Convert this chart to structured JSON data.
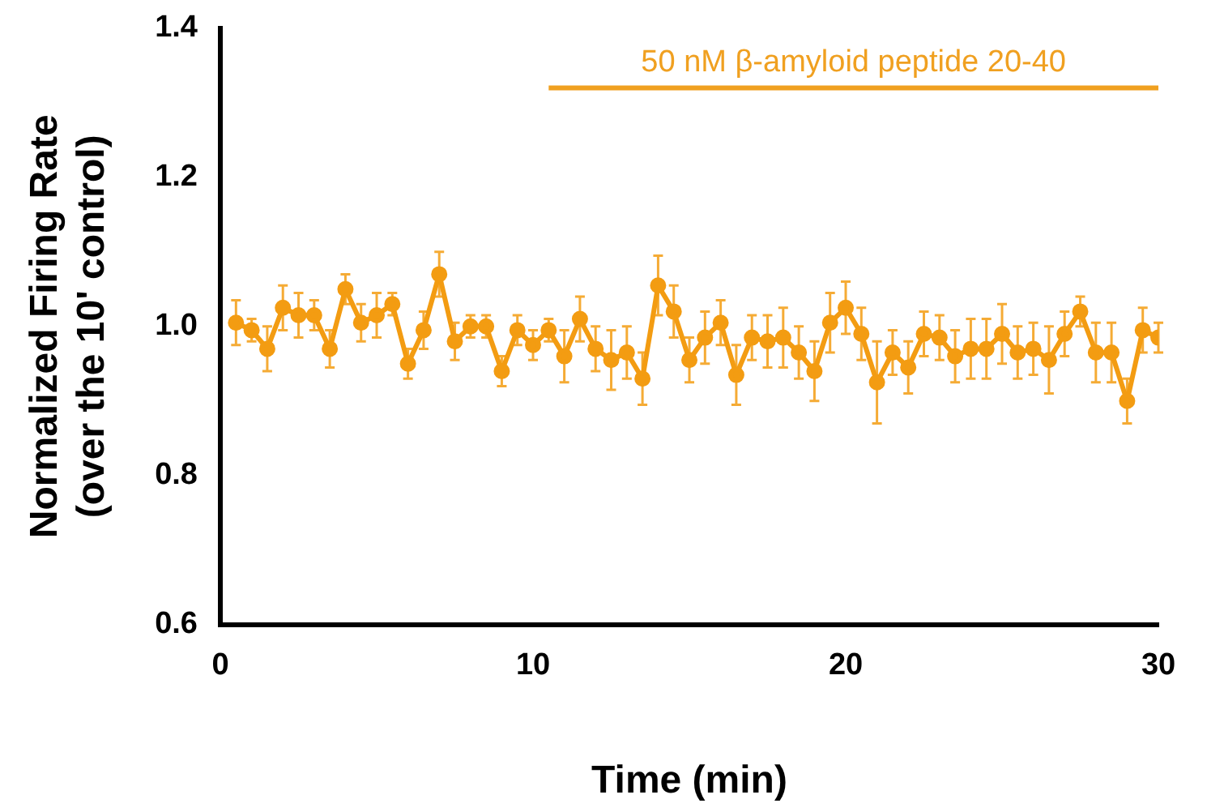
{
  "chart_data": {
    "type": "line",
    "xlabel": "Time (min)",
    "ylabel": "Normalized Firing Rate\n(over the 10' control)",
    "xlim": [
      0,
      30
    ],
    "xticks": [
      0,
      10,
      20,
      30
    ],
    "ylim": [
      0.6,
      1.4
    ],
    "yticks": [
      0.6,
      0.8,
      {
        "value": 1,
        "label": "1.0"
      },
      1.2,
      1.4
    ],
    "grid": false,
    "marker": "circle",
    "line_style": "solid",
    "series": [
      {
        "name": "50 nM β-amyloid peptide 20-40",
        "color": "#f0a020",
        "marker": "none",
        "x": [
          10.5,
          30
        ],
        "values": [
          1.32,
          1.32
        ]
      },
      {
        "color": "#f39c12",
        "x": [
          0.5,
          1,
          1.5,
          2,
          2.5,
          3,
          3.5,
          4,
          4.5,
          5,
          5.5,
          6,
          6.5,
          7,
          7.5,
          8,
          8.5,
          9,
          9.5,
          10,
          10.5,
          11,
          11.5,
          12,
          12.5,
          13,
          13.5,
          14,
          14.5,
          15,
          15.5,
          16,
          16.5,
          17,
          17.5,
          18,
          18.5,
          19,
          19.5,
          20,
          20.5,
          21,
          21.5,
          22,
          22.5,
          23,
          23.5,
          24,
          24.5,
          25,
          25.5,
          26,
          26.5,
          27,
          27.5,
          28,
          28.5,
          29,
          29.5,
          30
        ],
        "values": [
          1.005,
          0.995,
          0.97,
          1.025,
          1.015,
          1.015,
          0.97,
          1.05,
          1.005,
          1.015,
          1.03,
          0.95,
          0.995,
          1.07,
          0.98,
          1.0,
          1.0,
          0.94,
          0.995,
          0.975,
          0.995,
          0.96,
          1.01,
          0.97,
          0.955,
          0.965,
          0.93,
          1.055,
          1.02,
          0.955,
          0.985,
          1.005,
          0.935,
          0.985,
          0.98,
          0.985,
          0.965,
          0.94,
          1.005,
          1.025,
          0.99,
          0.925,
          0.965,
          0.945,
          0.99,
          0.985,
          0.96,
          0.97,
          0.97,
          0.99,
          0.965,
          0.97,
          0.955,
          0.99,
          1.02,
          0.965,
          0.965,
          0.9,
          0.995,
          0.985
        ],
        "errors": [
          0.03,
          0.015,
          0.03,
          0.03,
          0.03,
          0.02,
          0.025,
          0.02,
          0.025,
          0.03,
          0.015,
          0.02,
          0.025,
          0.03,
          0.025,
          0.015,
          0.015,
          0.02,
          0.02,
          0.02,
          0.015,
          0.035,
          0.03,
          0.03,
          0.04,
          0.035,
          0.035,
          0.04,
          0.035,
          0.03,
          0.035,
          0.03,
          0.04,
          0.03,
          0.035,
          0.04,
          0.035,
          0.04,
          0.04,
          0.035,
          0.035,
          0.055,
          0.03,
          0.035,
          0.03,
          0.03,
          0.035,
          0.04,
          0.04,
          0.04,
          0.035,
          0.035,
          0.045,
          0.03,
          0.02,
          0.04,
          0.04,
          0.03,
          0.03,
          0.02
        ]
      }
    ]
  }
}
